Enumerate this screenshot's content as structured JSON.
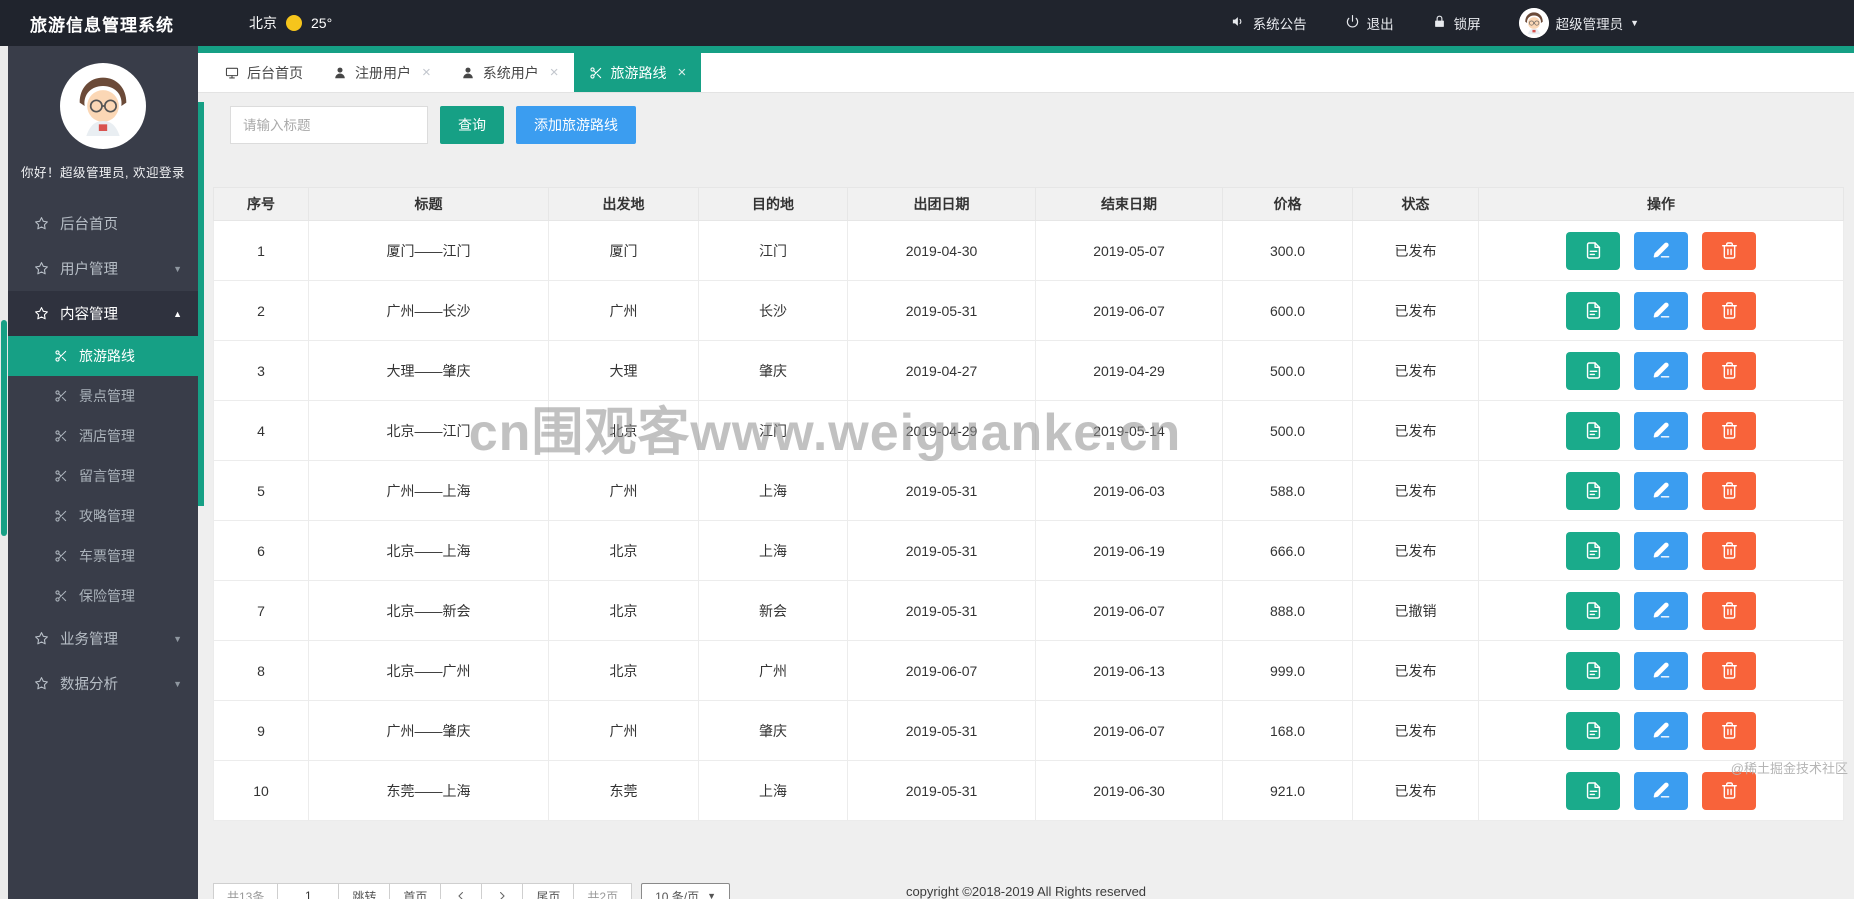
{
  "colors": {
    "topbar_bg": "#20242d",
    "sidebar_bg": "#393d49",
    "teal": "#16a085",
    "button_teal": "#1aab8b",
    "blue": "#3b9df0",
    "orange": "#f8633a"
  },
  "topbar": {
    "title": "旅游信息管理系统",
    "city": "北京",
    "temperature": "25°",
    "announcement_label": "系统公告",
    "logout_label": "退出",
    "lock_label": "锁屏",
    "admin_name": "超级管理员"
  },
  "sidebar": {
    "greeting": "你好！超级管理员, 欢迎登录",
    "items": [
      {
        "id": "home",
        "label": "后台首页",
        "icon": "star",
        "type": "parent"
      },
      {
        "id": "user-mgmt",
        "label": "用户管理",
        "icon": "star",
        "type": "parent",
        "arrow": "down"
      },
      {
        "id": "content-mgmt",
        "label": "内容管理",
        "icon": "star",
        "type": "parent",
        "arrow": "up",
        "expanded": true
      },
      {
        "id": "travel-routes",
        "label": "旅游路线",
        "icon": "scissors",
        "type": "sub",
        "active": true
      },
      {
        "id": "scenic-mgmt",
        "label": "景点管理",
        "icon": "scissors",
        "type": "sub"
      },
      {
        "id": "hotel-mgmt",
        "label": "酒店管理",
        "icon": "scissors",
        "type": "sub"
      },
      {
        "id": "message-mgmt",
        "label": "留言管理",
        "icon": "scissors",
        "type": "sub"
      },
      {
        "id": "guide-mgmt",
        "label": "攻略管理",
        "icon": "scissors",
        "type": "sub"
      },
      {
        "id": "ticket-mgmt",
        "label": "车票管理",
        "icon": "scissors",
        "type": "sub"
      },
      {
        "id": "insurance-mgmt",
        "label": "保险管理",
        "icon": "scissors",
        "type": "sub"
      },
      {
        "id": "business-mgmt",
        "label": "业务管理",
        "icon": "star",
        "type": "parent",
        "arrow": "down"
      },
      {
        "id": "data-analysis",
        "label": "数据分析",
        "icon": "star",
        "type": "parent",
        "arrow": "down"
      }
    ]
  },
  "tabs": [
    {
      "id": "home",
      "label": "后台首页",
      "icon": "monitor",
      "closable": false,
      "active": false
    },
    {
      "id": "registered-users",
      "label": "注册用户",
      "icon": "user",
      "closable": true,
      "active": false
    },
    {
      "id": "system-users",
      "label": "系统用户",
      "icon": "user",
      "closable": true,
      "active": false
    },
    {
      "id": "travel-routes",
      "label": "旅游路线",
      "icon": "scissors",
      "closable": true,
      "active": true
    }
  ],
  "search": {
    "placeholder": "请输入标题",
    "query_label": "查询",
    "add_label": "添加旅游路线"
  },
  "table": {
    "headers": [
      "序号",
      "标题",
      "出发地",
      "目的地",
      "出团日期",
      "结束日期",
      "价格",
      "状态",
      "操作"
    ],
    "rows": [
      {
        "no": "1",
        "title": "厦门——江门",
        "departure": "厦门",
        "destination": "江门",
        "start_date": "2019-04-30",
        "end_date": "2019-05-07",
        "price": "300.0",
        "status": "已发布"
      },
      {
        "no": "2",
        "title": "广州——长沙",
        "departure": "广州",
        "destination": "长沙",
        "start_date": "2019-05-31",
        "end_date": "2019-06-07",
        "price": "600.0",
        "status": "已发布"
      },
      {
        "no": "3",
        "title": "大理——肇庆",
        "departure": "大理",
        "destination": "肇庆",
        "start_date": "2019-04-27",
        "end_date": "2019-04-29",
        "price": "500.0",
        "status": "已发布"
      },
      {
        "no": "4",
        "title": "北京——江门",
        "departure": "北京",
        "destination": "江门",
        "start_date": "2019-04-29",
        "end_date": "2019-05-14",
        "price": "500.0",
        "status": "已发布"
      },
      {
        "no": "5",
        "title": "广州——上海",
        "departure": "广州",
        "destination": "上海",
        "start_date": "2019-05-31",
        "end_date": "2019-06-03",
        "price": "588.0",
        "status": "已发布"
      },
      {
        "no": "6",
        "title": "北京——上海",
        "departure": "北京",
        "destination": "上海",
        "start_date": "2019-05-31",
        "end_date": "2019-06-19",
        "price": "666.0",
        "status": "已发布"
      },
      {
        "no": "7",
        "title": "北京——新会",
        "departure": "北京",
        "destination": "新会",
        "start_date": "2019-05-31",
        "end_date": "2019-06-07",
        "price": "888.0",
        "status": "已撤销"
      },
      {
        "no": "8",
        "title": "北京——广州",
        "departure": "北京",
        "destination": "广州",
        "start_date": "2019-06-07",
        "end_date": "2019-06-13",
        "price": "999.0",
        "status": "已发布"
      },
      {
        "no": "9",
        "title": "广州——肇庆",
        "departure": "广州",
        "destination": "肇庆",
        "start_date": "2019-05-31",
        "end_date": "2019-06-07",
        "price": "168.0",
        "status": "已发布"
      },
      {
        "no": "10",
        "title": "东莞——上海",
        "departure": "东莞",
        "destination": "上海",
        "start_date": "2019-05-31",
        "end_date": "2019-06-30",
        "price": "921.0",
        "status": "已发布"
      }
    ]
  },
  "pagination": {
    "total_label": "共13条",
    "current_page": "1",
    "jump_label": "跳转",
    "first_label": "首页",
    "last_label": "尾页",
    "pages_label": "共2页",
    "page_size_label": "10 条/页"
  },
  "footer": {
    "copyright": "copyright ©2018-2019 All Rights reserved"
  },
  "watermarks": {
    "center": "cn围观客www.weiguanke.cn",
    "corner": "@稀土掘金技术社区"
  }
}
